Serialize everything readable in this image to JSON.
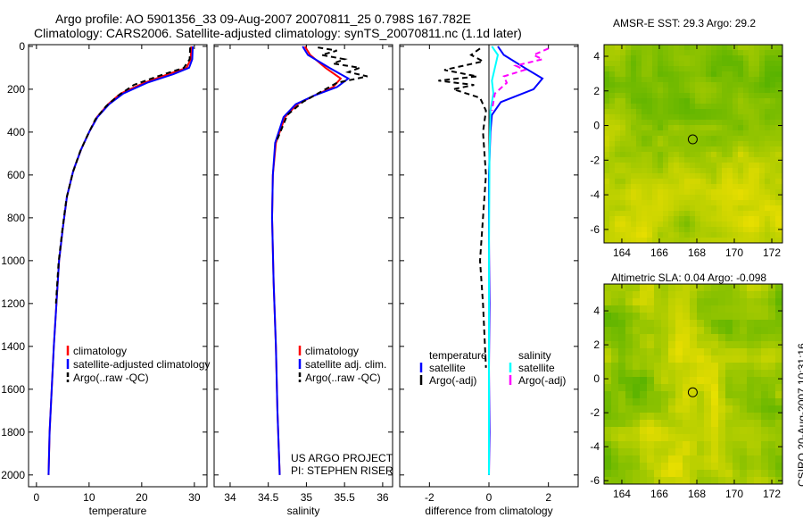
{
  "title": {
    "line1": "Argo profile: AO 5901356_33 09-Aug-2007 20070811_25 0.798S 167.782E",
    "line2": "Climatology: CARS2006. Satellite-adjusted climatology: synTS_20070811.nc (1.1d later)"
  },
  "side_label": "CSIRO 20-Aug-2007 10:31:16",
  "colors": {
    "clim": "#ff0000",
    "sat": "#0000ff",
    "argo": "#000000",
    "sal_sat": "#00ffff",
    "sal_argo": "#ff00ff"
  },
  "chart_data": [
    {
      "type": "line",
      "id": "temperature",
      "xlabel": "temperature",
      "ylabel": "",
      "xlim": [
        -1.5,
        32.4
      ],
      "ylim": [
        2055,
        -8
      ],
      "xticks": [
        0,
        10,
        20,
        30
      ],
      "yticks": [
        0,
        200,
        400,
        600,
        800,
        1000,
        1200,
        1400,
        1600,
        1800,
        2000
      ],
      "legend": [
        "climatology",
        "satellite-adjusted climatology",
        "Argo(..raw -QC)"
      ],
      "series": [
        {
          "name": "climatology",
          "color": "clim",
          "dash": false,
          "x": [
            29.4,
            29.3,
            28.5,
            25,
            20.5,
            16,
            13.6,
            11.5,
            10,
            8.5,
            7,
            5.8,
            5,
            4.3,
            3.8,
            3.3,
            2.9,
            2.5,
            2.3
          ],
          "y": [
            0,
            60,
            100,
            130,
            170,
            220,
            270,
            330,
            400,
            480,
            580,
            700,
            850,
            1000,
            1200,
            1400,
            1600,
            1800,
            2000
          ]
        },
        {
          "name": "satellite-adjusted climatology",
          "color": "sat",
          "dash": false,
          "x": [
            29.7,
            29.6,
            29,
            26,
            21,
            16.5,
            13.8,
            11.6,
            10,
            8.5,
            7,
            5.8,
            5,
            4.3,
            3.8,
            3.3,
            2.9,
            2.5,
            2.3
          ],
          "y": [
            0,
            60,
            100,
            130,
            170,
            220,
            270,
            330,
            400,
            480,
            580,
            700,
            850,
            1000,
            1200,
            1400,
            1600,
            1800,
            2000
          ]
        },
        {
          "name": "Argo(..raw -QC)",
          "color": "argo",
          "dash": true,
          "x": [
            29.2,
            29.1,
            28,
            23,
            18.5,
            15.5,
            13.2,
            11.2,
            9.8,
            8.3,
            6.9,
            5.7,
            4.9,
            4.2,
            3.7
          ],
          "y": [
            5,
            60,
            100,
            140,
            180,
            230,
            280,
            340,
            410,
            490,
            590,
            710,
            860,
            1010,
            1200
          ]
        }
      ]
    },
    {
      "type": "line",
      "id": "salinity",
      "xlabel": "salinity",
      "xlim": [
        33.79,
        36.13
      ],
      "ylim": [
        2055,
        -8
      ],
      "xticks": [
        34,
        34.5,
        35,
        35.5,
        36
      ],
      "yticks": [
        0,
        200,
        400,
        600,
        800,
        1000,
        1200,
        1400,
        1600,
        1800,
        2000
      ],
      "legend": [
        "climatology",
        "satellite adj. clim.",
        "Argo(..raw -QC)"
      ],
      "annotation": [
        "US ARGO PROJECT",
        "PI: STEPHEN RISER"
      ],
      "series": [
        {
          "name": "climatology",
          "color": "clim",
          "dash": false,
          "x": [
            34.98,
            35.05,
            35.25,
            35.45,
            35.35,
            35.1,
            34.88,
            34.72,
            34.6,
            34.56,
            34.55,
            34.57,
            34.6,
            34.62,
            34.65
          ],
          "y": [
            0,
            40,
            100,
            150,
            190,
            230,
            270,
            330,
            450,
            600,
            800,
            1100,
            1400,
            1700,
            2000
          ]
        },
        {
          "name": "satellite adj. clim.",
          "color": "sat",
          "dash": false,
          "x": [
            34.95,
            35.02,
            35.3,
            35.55,
            35.4,
            35.1,
            34.86,
            34.7,
            34.59,
            34.56,
            34.55,
            34.57,
            34.6,
            34.62,
            34.65
          ],
          "y": [
            0,
            40,
            100,
            150,
            190,
            230,
            270,
            330,
            450,
            600,
            800,
            1100,
            1400,
            1700,
            2000
          ]
        },
        {
          "name": "Argo(..raw -QC)",
          "color": "argo",
          "dash": true,
          "x": [
            35.15,
            35.4,
            35.2,
            35.5,
            35.35,
            35.7,
            35.55,
            35.8,
            35.4,
            35.2,
            34.95,
            34.75,
            34.6
          ],
          "y": [
            5,
            20,
            40,
            60,
            80,
            100,
            120,
            140,
            170,
            210,
            260,
            320,
            450
          ]
        }
      ]
    },
    {
      "type": "line",
      "id": "difference",
      "xlabel": "difference from climatology",
      "xlim": [
        -3,
        3
      ],
      "ylim": [
        2055,
        -8
      ],
      "xticks": [
        -2,
        0,
        2
      ],
      "yticks": [
        0,
        200,
        400,
        600,
        800,
        1000,
        1200,
        1400,
        1600,
        1800,
        2000
      ],
      "legend_temperature": {
        "title": "temperature",
        "items": [
          "satellite",
          "Argo(-adj)"
        ]
      },
      "legend_salinity": {
        "title": "salinity",
        "items": [
          "satellite",
          "Argo(-adj)"
        ]
      },
      "series": [
        {
          "name": "temperature satellite",
          "color": "sat",
          "dash": false,
          "x": [
            0.3,
            0.5,
            1.2,
            1.8,
            1.5,
            0.4,
            0.1,
            0.05,
            0,
            0,
            0.02,
            0,
            0.02,
            0
          ],
          "y": [
            0,
            40,
            100,
            150,
            200,
            260,
            320,
            400,
            600,
            900,
            1200,
            1500,
            1800,
            2000
          ]
        },
        {
          "name": "temperature Argo(-adj)",
          "color": "argo",
          "dash": true,
          "x": [
            -0.3,
            -0.6,
            -0.2,
            -1.5,
            -0.4,
            -1.7,
            -0.5,
            -1.2,
            -0.3,
            -0.1,
            -0.2,
            -0.1,
            -0.2,
            -0.3,
            -0.2,
            -0.1
          ],
          "y": [
            10,
            40,
            70,
            110,
            140,
            160,
            180,
            200,
            240,
            300,
            400,
            600,
            800,
            1000,
            1200,
            1500
          ]
        },
        {
          "name": "salinity satellite",
          "color": "sal_sat",
          "dash": false,
          "x": [
            0.1,
            0.3,
            0.2,
            0.1,
            0.15,
            0.05,
            0.02,
            0,
            0,
            0
          ],
          "y": [
            0,
            40,
            100,
            160,
            220,
            300,
            500,
            1000,
            1500,
            2000
          ]
        },
        {
          "name": "salinity Argo(-adj)",
          "color": "sal_argo",
          "dash": true,
          "x": [
            2.0,
            1.5,
            1.8,
            0.9,
            1.2,
            0.5,
            0.6,
            0.2,
            0.1
          ],
          "y": [
            10,
            40,
            60,
            90,
            110,
            140,
            170,
            220,
            300
          ]
        }
      ]
    },
    {
      "type": "heatmap",
      "id": "sst_map",
      "title": "AMSR-E SST: 29.3 Argo: 29.2",
      "xlim": [
        163.05,
        172.57
      ],
      "ylim": [
        -6.78,
        4.67
      ],
      "xticks": [
        164,
        166,
        168,
        170,
        172
      ],
      "yticks": [
        -6,
        -4,
        -2,
        0,
        2,
        4
      ],
      "marker": {
        "lon": 167.782,
        "lat": -0.798
      }
    },
    {
      "type": "heatmap",
      "id": "sla_map",
      "title": "Altimetric SLA: 0.04 Argo: -0.098",
      "xlim": [
        163.05,
        172.57
      ],
      "ylim": [
        -6.2,
        5.58
      ],
      "xticks": [
        164,
        166,
        168,
        170,
        172
      ],
      "yticks": [
        -6,
        -4,
        -2,
        0,
        2,
        4
      ],
      "marker": {
        "lon": 167.782,
        "lat": -0.798
      }
    }
  ]
}
